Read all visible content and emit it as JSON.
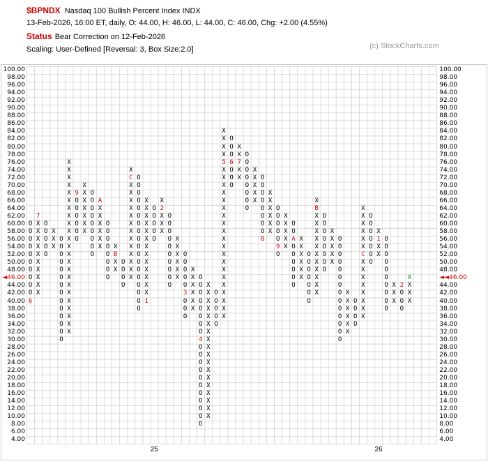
{
  "header": {
    "symbol": "$BPNDX",
    "title": "Nasdaq 100 Bullish Percent Index  INDX",
    "ohlc_line": "13-Feb-2026, 16:00 ET, daily, O: 44.00, H: 46.00, L: 44.00, C: 46.00, Chg: +2.00 (4.55%)",
    "status_label": "Status",
    "status_text": "Bear Correction on 12-Feb-2026",
    "scaling_line": "Scaling: User-Defined [Reversal: 3, Box Size:2.0]",
    "credit": "(c) StockCharts.com"
  },
  "chart_data": {
    "type": "point-and-figure",
    "symbol": "$BPNDX",
    "box_size": 2.0,
    "reversal": 3,
    "y_axis": {
      "max": 100.0,
      "min": 4.0,
      "step": 2.0
    },
    "current_price": 46.0,
    "current_price_label_left": "◄46.00",
    "current_price_label_right": "◄◄46.00",
    "x_year_labels": [
      {
        "label": "25",
        "col": 17
      },
      {
        "label": "26",
        "col": 46
      }
    ],
    "colors": {
      "mark": "#000000",
      "month": "#cc0000",
      "current": "#009900",
      "grid": "#d9d9d9",
      "price_highlight": "#cc0000",
      "symbol_red": "#cc0000"
    },
    "columns": [
      {
        "t": "O",
        "lo": 40,
        "hi": 60,
        "m": [
          {
            "p": 40,
            "c": "6"
          }
        ]
      },
      {
        "t": "X",
        "lo": 42,
        "hi": 62,
        "m": [
          {
            "p": 62,
            "c": "7"
          }
        ]
      },
      {
        "t": "O",
        "lo": 52,
        "hi": 60,
        "m": []
      },
      {
        "t": "X",
        "lo": 54,
        "hi": 58,
        "m": []
      },
      {
        "t": "O",
        "lo": 30,
        "hi": 56,
        "m": []
      },
      {
        "t": "X",
        "lo": 32,
        "hi": 76,
        "m": []
      },
      {
        "t": "O",
        "lo": 56,
        "hi": 68,
        "m": [
          {
            "p": 68,
            "c": "9"
          }
        ]
      },
      {
        "t": "X",
        "lo": 58,
        "hi": 70,
        "m": []
      },
      {
        "t": "O",
        "lo": 52,
        "hi": 68,
        "m": []
      },
      {
        "t": "X",
        "lo": 54,
        "hi": 66,
        "m": [
          {
            "p": 66,
            "c": "A"
          }
        ]
      },
      {
        "t": "O",
        "lo": 46,
        "hi": 60,
        "m": []
      },
      {
        "t": "X",
        "lo": 48,
        "hi": 54,
        "m": [
          {
            "p": 52,
            "c": "B"
          }
        ]
      },
      {
        "t": "O",
        "lo": 44,
        "hi": 50,
        "m": []
      },
      {
        "t": "X",
        "lo": 46,
        "hi": 74,
        "m": [
          {
            "p": 72,
            "c": "C"
          }
        ]
      },
      {
        "t": "O",
        "lo": 38,
        "hi": 72,
        "m": []
      },
      {
        "t": "X",
        "lo": 40,
        "hi": 66,
        "m": [
          {
            "p": 40,
            "c": "1"
          }
        ]
      },
      {
        "t": "O",
        "lo": 56,
        "hi": 64,
        "m": []
      },
      {
        "t": "X",
        "lo": 58,
        "hi": 66,
        "m": [
          {
            "p": 64,
            "c": "2"
          }
        ]
      },
      {
        "t": "O",
        "lo": 44,
        "hi": 62,
        "m": []
      },
      {
        "t": "X",
        "lo": 46,
        "hi": 56,
        "m": []
      },
      {
        "t": "O",
        "lo": 36,
        "hi": 52,
        "m": [
          {
            "p": 42,
            "c": "3"
          }
        ]
      },
      {
        "t": "X",
        "lo": 38,
        "hi": 48,
        "m": []
      },
      {
        "t": "O",
        "lo": 8,
        "hi": 46,
        "m": [
          {
            "p": 30,
            "c": "4"
          }
        ]
      },
      {
        "t": "X",
        "lo": 10,
        "hi": 44,
        "m": []
      },
      {
        "t": "O",
        "lo": 34,
        "hi": 42,
        "m": []
      },
      {
        "t": "X",
        "lo": 36,
        "hi": 84,
        "m": [
          {
            "p": 76,
            "c": "5"
          }
        ]
      },
      {
        "t": "O",
        "lo": 70,
        "hi": 82,
        "m": [
          {
            "p": 76,
            "c": "6"
          }
        ]
      },
      {
        "t": "X",
        "lo": 72,
        "hi": 80,
        "m": [
          {
            "p": 76,
            "c": "7"
          }
        ]
      },
      {
        "t": "O",
        "lo": 64,
        "hi": 78,
        "m": []
      },
      {
        "t": "X",
        "lo": 66,
        "hi": 74,
        "m": []
      },
      {
        "t": "O",
        "lo": 56,
        "hi": 72,
        "m": [
          {
            "p": 56,
            "c": "8"
          }
        ]
      },
      {
        "t": "X",
        "lo": 58,
        "hi": 68,
        "m": []
      },
      {
        "t": "O",
        "lo": 52,
        "hi": 64,
        "m": [
          {
            "p": 54,
            "c": "9"
          }
        ]
      },
      {
        "t": "X",
        "lo": 54,
        "hi": 62,
        "m": []
      },
      {
        "t": "O",
        "lo": 44,
        "hi": 60,
        "m": [
          {
            "p": 56,
            "c": "A"
          }
        ]
      },
      {
        "t": "X",
        "lo": 46,
        "hi": 56,
        "m": []
      },
      {
        "t": "O",
        "lo": 40,
        "hi": 52,
        "m": []
      },
      {
        "t": "X",
        "lo": 42,
        "hi": 66,
        "m": [
          {
            "p": 64,
            "c": "B"
          }
        ]
      },
      {
        "t": "O",
        "lo": 48,
        "hi": 62,
        "m": []
      },
      {
        "t": "X",
        "lo": 50,
        "hi": 58,
        "m": []
      },
      {
        "t": "O",
        "lo": 30,
        "hi": 56,
        "m": []
      },
      {
        "t": "X",
        "lo": 32,
        "hi": 42,
        "m": []
      },
      {
        "t": "O",
        "lo": 34,
        "hi": 40,
        "m": []
      },
      {
        "t": "X",
        "lo": 36,
        "hi": 64,
        "m": [
          {
            "p": 52,
            "c": "C"
          }
        ]
      },
      {
        "t": "O",
        "lo": 50,
        "hi": 62,
        "m": []
      },
      {
        "t": "X",
        "lo": 52,
        "hi": 58,
        "m": [
          {
            "p": 56,
            "c": "1"
          }
        ]
      },
      {
        "t": "O",
        "lo": 38,
        "hi": 56,
        "m": []
      },
      {
        "t": "X",
        "lo": 40,
        "hi": 44,
        "m": []
      },
      {
        "t": "O",
        "lo": 38,
        "hi": 44,
        "m": [
          {
            "p": 44,
            "c": "2"
          }
        ]
      },
      {
        "t": "X",
        "lo": 40,
        "hi": 46,
        "m": [
          {
            "p": 46,
            "c": "X",
            "color": "current"
          }
        ]
      }
    ]
  }
}
